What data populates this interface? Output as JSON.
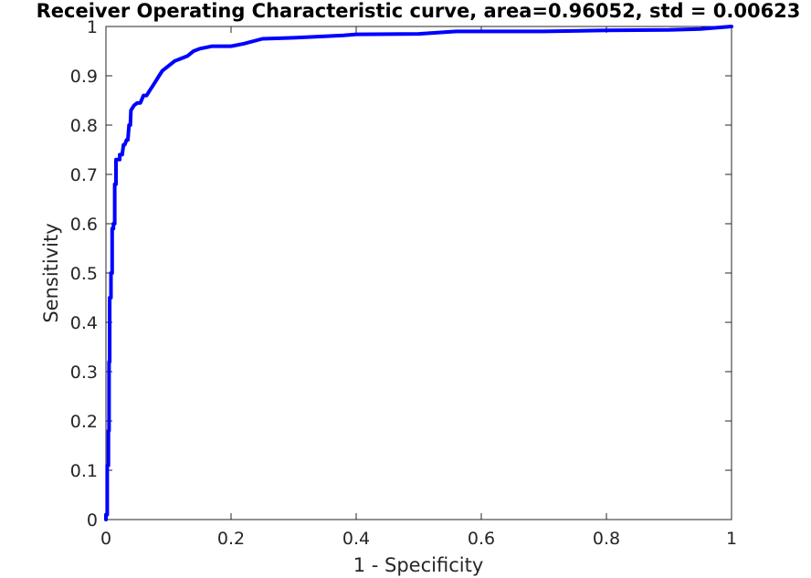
{
  "chart_data": {
    "type": "line",
    "title": "Receiver Operating Characteristic curve, area=0.96052, std = 0.00623",
    "xlabel": "1 - Specificity",
    "ylabel": "Sensitivity",
    "xlim": [
      0,
      1
    ],
    "ylim": [
      0,
      1
    ],
    "xticks": [
      0,
      0.2,
      0.4,
      0.6,
      0.8,
      1
    ],
    "xtick_labels": [
      "0",
      "0.2",
      "0.4",
      "0.6",
      "0.8",
      "1"
    ],
    "yticks": [
      0,
      0.1,
      0.2,
      0.3,
      0.4,
      0.5,
      0.6,
      0.7,
      0.8,
      0.9,
      1
    ],
    "ytick_labels": [
      "0",
      "0.1",
      "0.2",
      "0.3",
      "0.4",
      "0.5",
      "0.6",
      "0.7",
      "0.8",
      "0.9",
      "1"
    ],
    "grid": false,
    "series": [
      {
        "color": "#0000ff",
        "x": [
          0,
          0,
          0.002,
          0.002,
          0.004,
          0.004,
          0.005,
          0.005,
          0.006,
          0.006,
          0.008,
          0.008,
          0.01,
          0.01,
          0.012,
          0.012,
          0.014,
          0.014,
          0.016,
          0.016,
          0.018,
          0.018,
          0.022,
          0.022,
          0.026,
          0.028,
          0.03,
          0.033,
          0.035,
          0.037,
          0.039,
          0.04,
          0.045,
          0.05,
          0.055,
          0.06,
          0.065,
          0.07,
          0.075,
          0.08,
          0.085,
          0.09,
          0.1,
          0.11,
          0.12,
          0.13,
          0.14,
          0.15,
          0.17,
          0.2,
          0.22,
          0.25,
          0.3,
          0.35,
          0.38,
          0.4,
          0.5,
          0.56,
          0.6,
          0.7,
          0.8,
          0.9,
          0.95,
          1
        ],
        "y": [
          0,
          0.01,
          0.01,
          0.11,
          0.11,
          0.18,
          0.18,
          0.32,
          0.32,
          0.45,
          0.45,
          0.5,
          0.5,
          0.59,
          0.59,
          0.6,
          0.6,
          0.68,
          0.68,
          0.73,
          0.73,
          0.73,
          0.73,
          0.74,
          0.74,
          0.76,
          0.76,
          0.77,
          0.77,
          0.8,
          0.8,
          0.83,
          0.84,
          0.845,
          0.845,
          0.86,
          0.86,
          0.87,
          0.88,
          0.89,
          0.9,
          0.91,
          0.92,
          0.93,
          0.935,
          0.94,
          0.95,
          0.955,
          0.96,
          0.96,
          0.965,
          0.975,
          0.977,
          0.98,
          0.982,
          0.984,
          0.985,
          0.99,
          0.99,
          0.99,
          0.992,
          0.993,
          0.995,
          1
        ]
      }
    ]
  }
}
